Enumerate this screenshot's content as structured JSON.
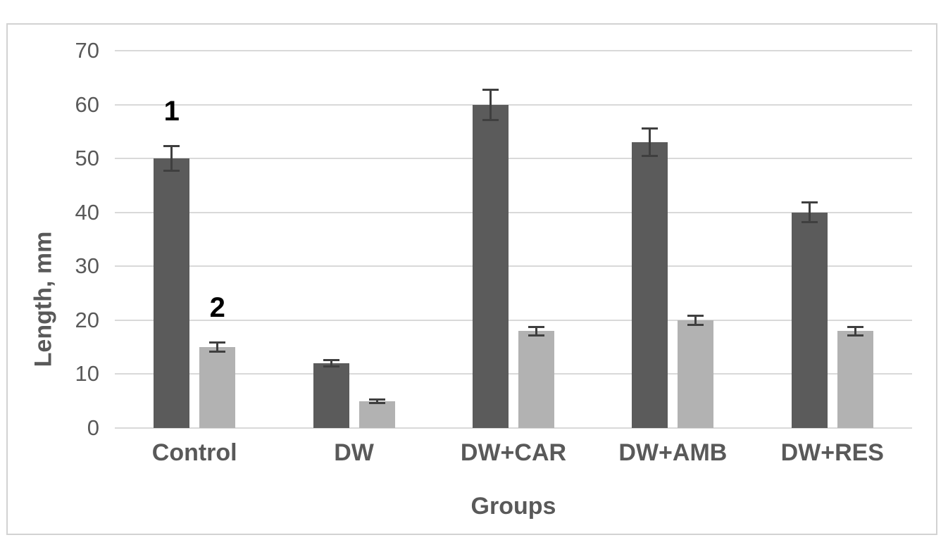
{
  "chart_data": {
    "type": "bar",
    "title": "",
    "xlabel": "Groups",
    "ylabel": "Length, mm",
    "categories": [
      "Control",
      "DW",
      "DW+CAR",
      "DW+AMB",
      "DW+RES"
    ],
    "series": [
      {
        "name": "1",
        "color": "#5b5b5b",
        "values": [
          50,
          12,
          60,
          53,
          40
        ],
        "errors": [
          2.5,
          0.8,
          3,
          2.7,
          2
        ]
      },
      {
        "name": "2",
        "color": "#b2b2b2",
        "values": [
          15,
          5,
          18,
          20,
          18
        ],
        "errors": [
          1,
          0.5,
          1,
          1,
          1
        ]
      }
    ],
    "ylim": [
      0,
      70
    ],
    "ytick_step": 10,
    "yticks": [
      0,
      10,
      20,
      30,
      40,
      50,
      60,
      70
    ],
    "grid": true,
    "legend_position": "none",
    "annotations": [
      {
        "text": "1",
        "category_index": 0,
        "series_index": 0
      },
      {
        "text": "2",
        "category_index": 0,
        "series_index": 1
      }
    ],
    "error_bar_color": "#3f3f3f",
    "gridline_color": "#d9d9d9",
    "frame_border_color": "#d2d2d2",
    "text_color": "#595959",
    "annotation_color": "#000000",
    "background_color": "#ffffff"
  }
}
